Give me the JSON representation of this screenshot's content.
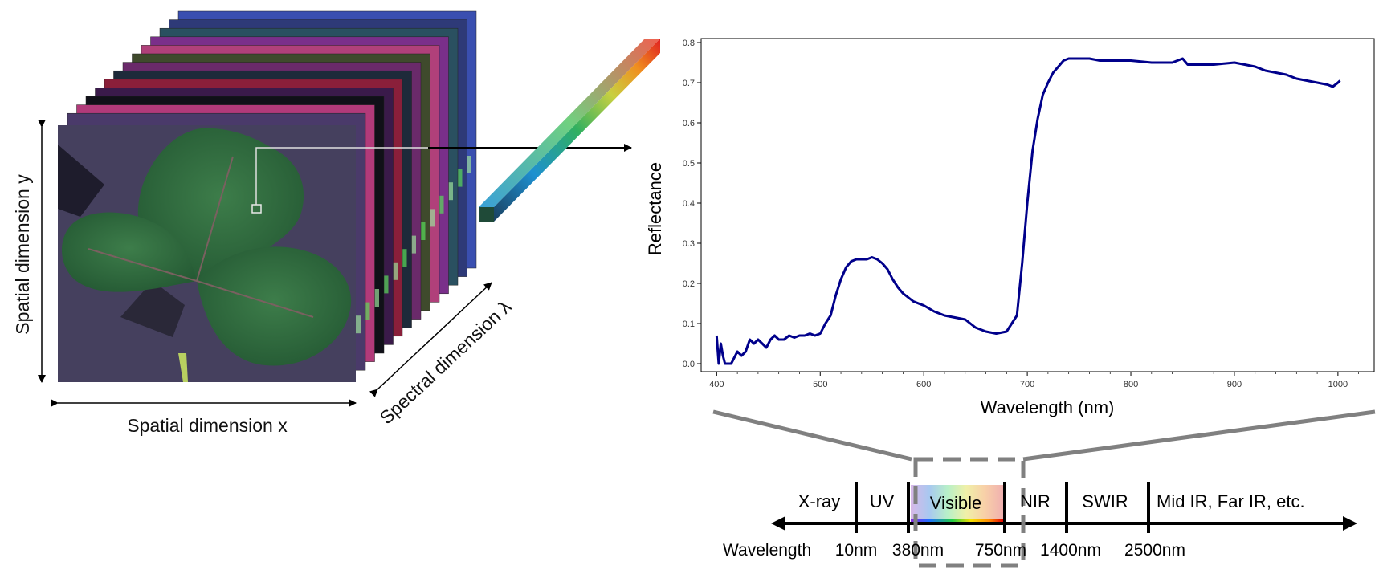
{
  "cube": {
    "label_x": "Spatial dimension x",
    "label_y": "Spatial dimension y",
    "label_lambda": "Spectral dimension λ",
    "layer_colors": [
      "#3a4fb0",
      "#2e3a78",
      "#2a5060",
      "#7a2f8a",
      "#b0407a",
      "#3f4a2c",
      "#6a2a6a",
      "#1e2a3a",
      "#8a1f3a",
      "#3a1a4a",
      "#101018",
      "#b23a7a",
      "#4a3a6a"
    ],
    "leaf_bg": "#45405e",
    "leaf_color": "#2f6e3e"
  },
  "chart_data": {
    "type": "line",
    "xlabel": "Wavelength (nm)",
    "ylabel": "Reflectance",
    "xlim": [
      385,
      1035
    ],
    "ylim": [
      -0.02,
      0.81
    ],
    "xticks": [
      400,
      500,
      600,
      700,
      800,
      900,
      1000
    ],
    "yticks": [
      0.0,
      0.1,
      0.2,
      0.3,
      0.4,
      0.5,
      0.6,
      0.7,
      0.8
    ],
    "line_color": "#00008b",
    "series": [
      {
        "x": [
          400,
          402,
          404,
          406,
          408,
          410,
          412,
          414,
          416,
          418,
          420,
          424,
          428,
          432,
          436,
          440,
          444,
          448,
          452,
          456,
          460,
          465,
          470,
          475,
          480,
          485,
          490,
          495,
          500,
          505,
          510,
          515,
          520,
          525,
          530,
          535,
          540,
          545,
          550,
          555,
          560,
          565,
          570,
          575,
          580,
          590,
          600,
          610,
          620,
          630,
          640,
          650,
          660,
          670,
          680,
          690,
          695,
          700,
          705,
          710,
          715,
          720,
          725,
          730,
          735,
          740,
          750,
          760,
          770,
          780,
          800,
          820,
          840,
          850,
          855,
          860,
          880,
          900,
          920,
          930,
          940,
          950,
          960,
          970,
          980,
          990,
          995,
          1000,
          1002
        ],
        "y": [
          0.07,
          0.0,
          0.05,
          0.02,
          0.0,
          0.0,
          0.0,
          0.0,
          0.01,
          0.02,
          0.03,
          0.02,
          0.03,
          0.06,
          0.05,
          0.06,
          0.05,
          0.04,
          0.06,
          0.07,
          0.06,
          0.06,
          0.07,
          0.065,
          0.07,
          0.07,
          0.075,
          0.07,
          0.075,
          0.1,
          0.12,
          0.17,
          0.21,
          0.24,
          0.255,
          0.26,
          0.26,
          0.26,
          0.265,
          0.26,
          0.25,
          0.235,
          0.21,
          0.19,
          0.175,
          0.155,
          0.145,
          0.13,
          0.12,
          0.115,
          0.11,
          0.09,
          0.08,
          0.075,
          0.08,
          0.12,
          0.25,
          0.4,
          0.53,
          0.61,
          0.67,
          0.7,
          0.725,
          0.74,
          0.755,
          0.76,
          0.76,
          0.76,
          0.755,
          0.755,
          0.755,
          0.75,
          0.75,
          0.76,
          0.745,
          0.745,
          0.745,
          0.75,
          0.74,
          0.73,
          0.725,
          0.72,
          0.71,
          0.705,
          0.7,
          0.695,
          0.69,
          0.7,
          0.705
        ]
      }
    ]
  },
  "spectrum": {
    "bands": [
      "X-ray",
      "UV",
      "Visible",
      "NIR",
      "SWIR",
      "Mid IR, Far IR, etc."
    ],
    "axis_label": "Wavelength",
    "ticks": [
      "10nm",
      "380nm",
      "750nm",
      "1400nm",
      "2500nm"
    ]
  }
}
